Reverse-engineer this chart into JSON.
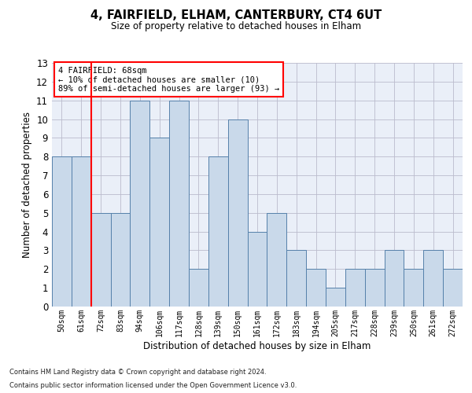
{
  "title1": "4, FAIRFIELD, ELHAM, CANTERBURY, CT4 6UT",
  "title2": "Size of property relative to detached houses in Elham",
  "xlabel": "Distribution of detached houses by size in Elham",
  "ylabel": "Number of detached properties",
  "bar_labels": [
    "50sqm",
    "61sqm",
    "72sqm",
    "83sqm",
    "94sqm",
    "106sqm",
    "117sqm",
    "128sqm",
    "139sqm",
    "150sqm",
    "161sqm",
    "172sqm",
    "183sqm",
    "194sqm",
    "205sqm",
    "217sqm",
    "228sqm",
    "239sqm",
    "250sqm",
    "261sqm",
    "272sqm"
  ],
  "bar_values": [
    8,
    8,
    5,
    5,
    11,
    9,
    11,
    2,
    8,
    10,
    4,
    5,
    3,
    2,
    1,
    2,
    2,
    3,
    2,
    3,
    2
  ],
  "bar_color": "#c9d9ea",
  "bar_edgecolor": "#5580aa",
  "grid_color": "#bbbbcc",
  "bg_color": "#eaeff8",
  "redline_x": 1.5,
  "annotation_text": "4 FAIRFIELD: 68sqm\n← 10% of detached houses are smaller (10)\n89% of semi-detached houses are larger (93) →",
  "annotation_box_color": "white",
  "annotation_box_edgecolor": "red",
  "ylim": [
    0,
    13
  ],
  "yticks": [
    0,
    1,
    2,
    3,
    4,
    5,
    6,
    7,
    8,
    9,
    10,
    11,
    12,
    13
  ],
  "footer1": "Contains HM Land Registry data © Crown copyright and database right 2024.",
  "footer2": "Contains public sector information licensed under the Open Government Licence v3.0."
}
